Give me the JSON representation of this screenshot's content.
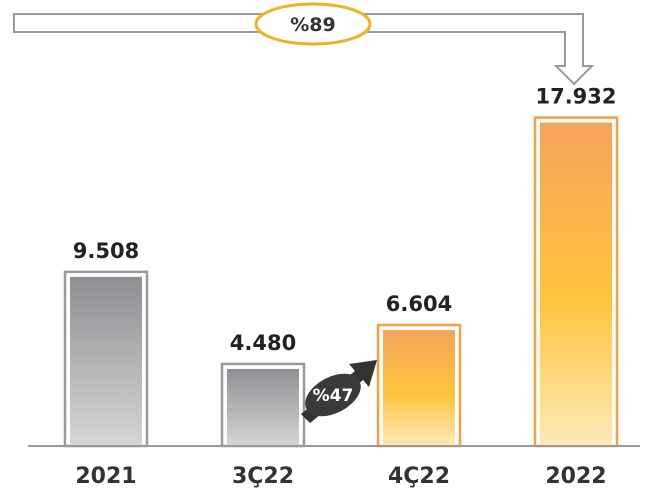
{
  "chart_data": {
    "type": "bar",
    "categories": [
      "2021",
      "3Ç22",
      "4Ç22",
      "2022"
    ],
    "values": [
      9508,
      4480,
      6604,
      17932
    ],
    "value_labels": [
      "9.508",
      "4.480",
      "6.604",
      "17.932"
    ],
    "ylim": [
      0,
      19000
    ],
    "grid": false,
    "title": "",
    "xlabel": "",
    "ylabel": "",
    "bar_styles": [
      "gray",
      "gray",
      "orange",
      "orange"
    ],
    "colors": {
      "gray_top": "#8e8f92",
      "gray_bottom": "#d6d6d8",
      "orange_top": "#f5a35a",
      "orange_mid": "#ffc43d",
      "orange_bottom": "#fde9b8",
      "outline_gray": "#9a9a9c",
      "outline_orange": "#f5a03c",
      "axis": "#9a9a9a"
    },
    "annotations": [
      {
        "text": "%89",
        "from": "2021",
        "to": "2022",
        "style": "bracket-arrow"
      },
      {
        "text": "%47",
        "from": "3Ç22",
        "to": "4Ç22",
        "style": "diagonal-arrow"
      }
    ]
  }
}
